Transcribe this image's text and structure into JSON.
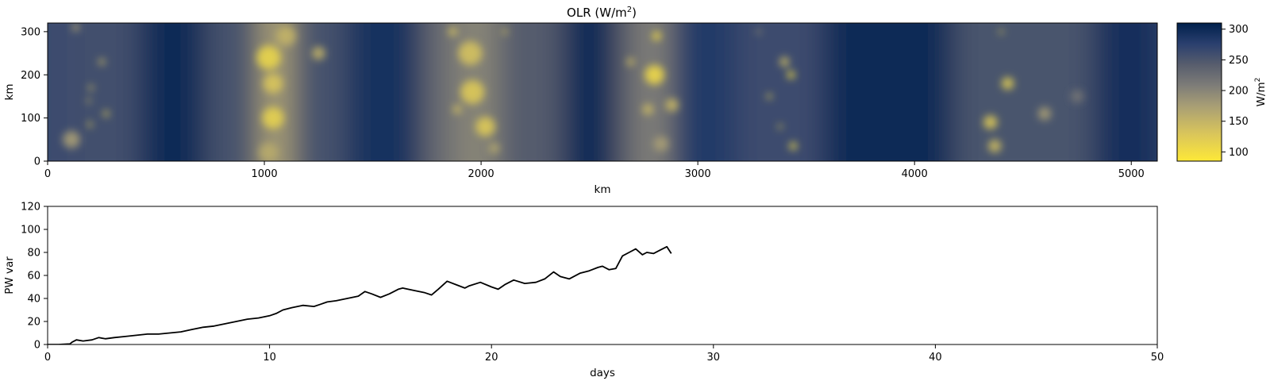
{
  "chart_data": [
    {
      "type": "heatmap",
      "title": "OLR (W/m²)",
      "title_main": "OLR (W/m",
      "title_sup": "2",
      "title_close": ")",
      "xlabel": "km",
      "ylabel": "km",
      "xlim": [
        0,
        5120
      ],
      "ylim": [
        0,
        320
      ],
      "xticks": [
        0,
        1000,
        2000,
        3000,
        4000,
        5000
      ],
      "yticks": [
        0,
        100,
        200,
        300
      ],
      "colormap": "cividis_r",
      "colorbar": {
        "label": "W/m²",
        "label_main": "W/m",
        "label_sup": "2",
        "range": [
          85,
          310
        ],
        "ticks": [
          100,
          150,
          200,
          250,
          300
        ]
      },
      "background_bands": [
        {
          "x_range": [
            0,
            150
          ],
          "olr": 262
        },
        {
          "x_range": [
            150,
            450
          ],
          "olr": 258
        },
        {
          "x_range": [
            450,
            750
          ],
          "olr": 300
        },
        {
          "x_range": [
            750,
            1000
          ],
          "olr": 255
        },
        {
          "x_range": [
            1000,
            1150
          ],
          "olr": 175
        },
        {
          "x_range": [
            1150,
            1400
          ],
          "olr": 255
        },
        {
          "x_range": [
            1400,
            1750
          ],
          "olr": 292
        },
        {
          "x_range": [
            1750,
            1900
          ],
          "olr": 228
        },
        {
          "x_range": [
            1900,
            2100
          ],
          "olr": 200
        },
        {
          "x_range": [
            2100,
            2400
          ],
          "olr": 245
        },
        {
          "x_range": [
            2400,
            2650
          ],
          "olr": 300
        },
        {
          "x_range": [
            2650,
            2750
          ],
          "olr": 230
        },
        {
          "x_range": [
            2750,
            2900
          ],
          "olr": 205
        },
        {
          "x_range": [
            2900,
            3200
          ],
          "olr": 282
        },
        {
          "x_range": [
            3200,
            3600
          ],
          "olr": 262
        },
        {
          "x_range": [
            3600,
            4200
          ],
          "olr": 300
        },
        {
          "x_range": [
            4200,
            4850
          ],
          "olr": 252
        },
        {
          "x_range": [
            4850,
            5120
          ],
          "olr": 295
        }
      ],
      "convective_cells": [
        {
          "x": 110,
          "y": 50,
          "r": 40,
          "olr": 175
        },
        {
          "x": 200,
          "y": 170,
          "r": 12,
          "olr": 135
        },
        {
          "x": 190,
          "y": 140,
          "r": 10,
          "olr": 130
        },
        {
          "x": 195,
          "y": 85,
          "r": 12,
          "olr": 120
        },
        {
          "x": 270,
          "y": 110,
          "r": 14,
          "olr": 120
        },
        {
          "x": 250,
          "y": 230,
          "r": 15,
          "olr": 145
        },
        {
          "x": 130,
          "y": 310,
          "r": 18,
          "olr": 170
        },
        {
          "x": 1020,
          "y": 240,
          "r": 55,
          "olr": 110
        },
        {
          "x": 1040,
          "y": 180,
          "r": 45,
          "olr": 130
        },
        {
          "x": 1040,
          "y": 100,
          "r": 50,
          "olr": 115
        },
        {
          "x": 1020,
          "y": 20,
          "r": 45,
          "olr": 160
        },
        {
          "x": 1100,
          "y": 290,
          "r": 45,
          "olr": 150
        },
        {
          "x": 1250,
          "y": 250,
          "r": 30,
          "olr": 150
        },
        {
          "x": 1950,
          "y": 250,
          "r": 55,
          "olr": 135
        },
        {
          "x": 1960,
          "y": 160,
          "r": 55,
          "olr": 125
        },
        {
          "x": 2020,
          "y": 80,
          "r": 45,
          "olr": 125
        },
        {
          "x": 1890,
          "y": 120,
          "r": 20,
          "olr": 140
        },
        {
          "x": 1870,
          "y": 300,
          "r": 20,
          "olr": 135
        },
        {
          "x": 2110,
          "y": 300,
          "r": 12,
          "olr": 130
        },
        {
          "x": 2060,
          "y": 30,
          "r": 25,
          "olr": 165
        },
        {
          "x": 2800,
          "y": 200,
          "r": 45,
          "olr": 105
        },
        {
          "x": 2810,
          "y": 290,
          "r": 20,
          "olr": 100
        },
        {
          "x": 2770,
          "y": 120,
          "r": 25,
          "olr": 145
        },
        {
          "x": 2690,
          "y": 230,
          "r": 18,
          "olr": 140
        },
        {
          "x": 2880,
          "y": 130,
          "r": 30,
          "olr": 145
        },
        {
          "x": 2830,
          "y": 40,
          "r": 35,
          "olr": 175
        },
        {
          "x": 3400,
          "y": 230,
          "r": 22,
          "olr": 140
        },
        {
          "x": 3430,
          "y": 200,
          "r": 18,
          "olr": 95
        },
        {
          "x": 3330,
          "y": 150,
          "r": 12,
          "olr": 110
        },
        {
          "x": 3380,
          "y": 80,
          "r": 10,
          "olr": 100
        },
        {
          "x": 3440,
          "y": 35,
          "r": 18,
          "olr": 110
        },
        {
          "x": 3280,
          "y": 300,
          "r": 10,
          "olr": 160
        },
        {
          "x": 4430,
          "y": 180,
          "r": 28,
          "olr": 120
        },
        {
          "x": 4350,
          "y": 90,
          "r": 32,
          "olr": 125
        },
        {
          "x": 4370,
          "y": 35,
          "r": 30,
          "olr": 140
        },
        {
          "x": 4400,
          "y": 300,
          "r": 10,
          "olr": 110
        },
        {
          "x": 4600,
          "y": 110,
          "r": 30,
          "olr": 175
        },
        {
          "x": 4750,
          "y": 150,
          "r": 30,
          "olr": 215
        }
      ]
    },
    {
      "type": "line",
      "title": "",
      "xlabel": "days",
      "ylabel": "PW var",
      "xlim": [
        0,
        50
      ],
      "ylim": [
        0,
        120
      ],
      "xticks": [
        0,
        10,
        20,
        30,
        40,
        50
      ],
      "yticks": [
        0,
        20,
        40,
        60,
        80,
        100,
        120
      ],
      "series": [
        {
          "color": "#000000",
          "x": [
            0,
            0.5,
            1.0,
            1.1,
            1.3,
            1.6,
            2.0,
            2.3,
            2.6,
            3.0,
            3.5,
            4.0,
            4.5,
            5.0,
            5.5,
            6.0,
            6.5,
            7.0,
            7.5,
            8.0,
            8.5,
            9.0,
            9.5,
            10.0,
            10.3,
            10.6,
            11.0,
            11.5,
            12.0,
            12.3,
            12.6,
            13.0,
            13.5,
            14.0,
            14.3,
            14.6,
            15.0,
            15.4,
            15.8,
            16.0,
            16.5,
            17.0,
            17.3,
            17.6,
            18.0,
            18.4,
            18.8,
            19.0,
            19.5,
            20.0,
            20.3,
            20.6,
            21.0,
            21.5,
            22.0,
            22.4,
            22.8,
            23.1,
            23.5,
            24.0,
            24.4,
            24.8,
            25.0,
            25.3,
            25.6,
            25.9,
            26.2,
            26.5,
            26.8,
            27.0,
            27.3,
            27.6,
            27.9,
            28.1
          ],
          "y": [
            0,
            0,
            0.5,
            2,
            4,
            3,
            4,
            6,
            5,
            6,
            7,
            8,
            9,
            9,
            10,
            11,
            13,
            15,
            16,
            18,
            20,
            22,
            23,
            25,
            27,
            30,
            32,
            34,
            33,
            35,
            37,
            38,
            40,
            42,
            46,
            44,
            41,
            44,
            48,
            49,
            47,
            45,
            43,
            48,
            55,
            52,
            49,
            51,
            54,
            50,
            48,
            52,
            56,
            53,
            54,
            57,
            63,
            59,
            57,
            62,
            64,
            67,
            68,
            65,
            66,
            77,
            80,
            83,
            78,
            80,
            79,
            82,
            85,
            79
          ]
        }
      ]
    }
  ]
}
